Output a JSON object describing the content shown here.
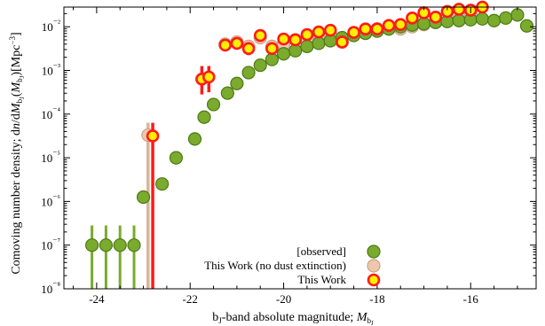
{
  "chart_data": {
    "type": "scatter",
    "xlabel": "b₁-band absolute magnitude; M₇₁",
    "ylabel": "Comoving number density; dn/dM(M) [Mpc⁻³]",
    "xlim": [
      -24.7,
      -14.6
    ],
    "ylim_log10": [
      -8,
      -1.55
    ],
    "x_ticks": [
      -24,
      -22,
      -20,
      -18,
      -16
    ],
    "x_tick_labels": [
      "-24",
      "-22",
      "-20",
      "-18",
      "-16"
    ],
    "y_ticks_log10": [
      -8,
      -7,
      -6,
      -5,
      -4,
      -3,
      -2
    ],
    "y_tick_labels": [
      "10⁻⁸",
      "10⁻⁷",
      "10⁻⁶",
      "10⁻⁵",
      "10⁻⁴",
      "10⁻³",
      "10⁻²"
    ],
    "legend_position": "bottom-right",
    "colors": {
      "observed": "#7aaa2e",
      "observed_edge": "#4e7a14",
      "nodust": "#efc7ae",
      "nodust_edge": "#c9a389",
      "this_work": "#ffee00",
      "this_work_edge": "#ff1a1a"
    },
    "series": [
      {
        "name": "[observed]",
        "style": "observed",
        "x": [
          -24.1,
          -23.8,
          -23.5,
          -23.2,
          -23.0,
          -22.6,
          -22.3,
          -21.9,
          -21.7,
          -21.5,
          -21.2,
          -21.0,
          -20.75,
          -20.5,
          -20.25,
          -20.0,
          -19.75,
          -19.5,
          -19.25,
          -19.0,
          -18.75,
          -18.5,
          -18.25,
          -18.0,
          -17.75,
          -17.5,
          -17.25,
          -17.0,
          -16.75,
          -16.5,
          -16.25,
          -16.0,
          -15.75,
          -15.5,
          -15.25,
          -15.0,
          -14.8
        ],
        "logy": [
          -7.0,
          -7.0,
          -7.0,
          -7.0,
          -5.9,
          -5.6,
          -5.0,
          -4.57,
          -4.07,
          -3.78,
          -3.52,
          -3.3,
          -3.05,
          -2.88,
          -2.75,
          -2.62,
          -2.55,
          -2.45,
          -2.38,
          -2.32,
          -2.25,
          -2.2,
          -2.15,
          -2.1,
          -2.05,
          -2.0,
          -1.96,
          -1.93,
          -1.9,
          -1.88,
          -1.86,
          -1.84,
          -1.82,
          -1.86,
          -1.8,
          -1.73,
          -1.98
        ],
        "err_low": [
          -8.0,
          -8.0,
          -8.0,
          -8.0,
          null,
          null,
          null,
          null,
          null,
          null,
          null,
          null,
          null,
          null,
          null,
          null,
          null,
          null,
          null,
          null,
          null,
          null,
          null,
          null,
          null,
          null,
          null,
          null,
          null,
          null,
          null,
          null,
          null,
          null,
          null,
          null,
          null
        ],
        "err_high": [
          -6.55,
          -6.55,
          -6.55,
          -6.55,
          null,
          null,
          null,
          null,
          null,
          null,
          null,
          null,
          null,
          null,
          null,
          null,
          null,
          null,
          null,
          null,
          null,
          null,
          null,
          null,
          null,
          null,
          null,
          null,
          null,
          null,
          null,
          null,
          null,
          null,
          null,
          null,
          null
        ]
      },
      {
        "name": "This Work (no dust extinction)",
        "style": "nodust",
        "x": [
          -22.9,
          -21.25,
          -21.0,
          -20.75,
          -20.5,
          -20.25,
          -20.0,
          -19.75,
          -19.5,
          -19.25,
          -19.0,
          -18.75,
          -18.5,
          -18.25,
          -18.0,
          -17.75,
          -17.5,
          -17.25,
          -17.0,
          -16.75,
          -16.5,
          -16.25,
          -16.0
        ],
        "logy": [
          -4.48,
          -2.4,
          -2.35,
          -2.45,
          -2.25,
          -2.45,
          -2.4,
          -2.3,
          -2.3,
          -2.2,
          -2.15,
          -2.35,
          -2.2,
          -2.1,
          -2.05,
          -2.05,
          -2.05,
          -2.0,
          -1.95,
          -1.9,
          -1.8,
          -1.75,
          -1.7
        ],
        "err_low": [
          -8.0,
          null,
          null,
          null,
          null,
          null,
          null,
          null,
          null,
          null,
          null,
          null,
          null,
          null,
          null,
          null,
          null,
          null,
          null,
          null,
          null,
          null,
          null
        ],
        "err_high": [
          -4.2,
          null,
          null,
          null,
          null,
          null,
          null,
          null,
          null,
          null,
          null,
          null,
          null,
          null,
          null,
          null,
          null,
          null,
          null,
          null,
          null,
          null,
          null
        ]
      },
      {
        "name": "This Work",
        "style": "this_work",
        "x": [
          -22.8,
          -21.75,
          -21.6,
          -21.25,
          -21.0,
          -20.75,
          -20.5,
          -20.25,
          -20.0,
          -19.75,
          -19.5,
          -19.25,
          -19.0,
          -18.75,
          -18.5,
          -18.25,
          -18.0,
          -17.75,
          -17.5,
          -17.25,
          -17.0,
          -16.75,
          -16.5,
          -16.25,
          -16.0,
          -15.75
        ],
        "logy": [
          -4.5,
          -3.2,
          -3.15,
          -2.42,
          -2.38,
          -2.5,
          -2.2,
          -2.5,
          -2.28,
          -2.3,
          -2.18,
          -2.12,
          -2.08,
          -2.35,
          -2.13,
          -2.05,
          -2.05,
          -1.97,
          -1.95,
          -1.8,
          -1.68,
          -1.78,
          -1.65,
          -1.6,
          -1.62,
          -1.55
        ],
        "err_low": [
          -8.0,
          -3.55,
          -3.5,
          -2.55,
          -2.5,
          -2.65,
          -2.35,
          -2.6,
          -2.4,
          -2.4,
          -2.28,
          -2.22,
          -2.18,
          -2.45,
          null,
          null,
          null,
          null,
          null,
          null,
          null,
          null,
          null,
          null,
          null,
          null
        ],
        "err_high": [
          -4.2,
          -2.9,
          -2.9,
          -2.28,
          -2.25,
          -2.38,
          -2.08,
          -2.38,
          -2.18,
          -2.2,
          -2.08,
          -2.02,
          -1.98,
          -2.25,
          null,
          null,
          null,
          null,
          null,
          null,
          null,
          null,
          null,
          null,
          null,
          null
        ]
      }
    ]
  }
}
